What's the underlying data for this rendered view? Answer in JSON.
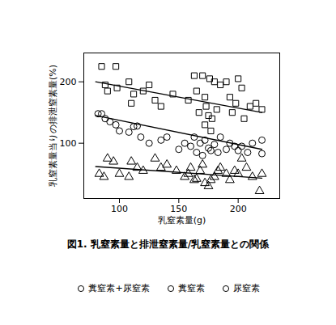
{
  "chart_data": {
    "type": "scatter",
    "title": "図1. 乳窒素量と排泄窒素量/乳窒素量との関係",
    "x_label": "乳窒素量(g)",
    "y_label": "乳窒素量当りの排泄窒素量(%)",
    "xlim": [
      70,
      235
    ],
    "xticks": [
      100,
      150,
      200
    ],
    "ylim": [
      10,
      247
    ],
    "yticks": [
      100,
      200
    ],
    "grid": false,
    "legend": "bottom",
    "series": [
      {
        "name": "糞窒素+尿窒素",
        "marker": "square",
        "color": "#000000",
        "x": [
          85,
          88,
          90,
          97,
          98,
          108,
          110,
          112,
          120,
          125,
          130,
          135,
          145,
          158,
          163,
          165,
          167,
          170,
          172,
          173,
          175,
          176,
          178,
          180,
          182,
          185,
          190,
          193,
          195,
          198,
          200,
          203,
          205,
          210,
          215,
          220,
          172,
          177
        ],
        "values": [
          225,
          195,
          185,
          225,
          190,
          200,
          165,
          180,
          185,
          195,
          170,
          160,
          180,
          170,
          210,
          185,
          150,
          210,
          175,
          160,
          145,
          205,
          140,
          200,
          155,
          195,
          200,
          175,
          150,
          165,
          205,
          190,
          140,
          160,
          165,
          155,
          130,
          120
        ],
        "fit": {
          "x": [
            80,
            220
          ],
          "values": [
            200,
            150
          ]
        }
      },
      {
        "name": "糞窒素",
        "marker": "circle",
        "color": "#000000",
        "x": [
          82,
          85,
          88,
          92,
          97,
          100,
          108,
          112,
          115,
          118,
          125,
          135,
          140,
          150,
          155,
          160,
          163,
          165,
          168,
          170,
          172,
          175,
          177,
          180,
          183,
          185,
          190,
          193,
          197,
          200,
          203,
          208,
          212,
          220,
          220
        ],
        "values": [
          148,
          148,
          140,
          135,
          130,
          120,
          118,
          127,
          128,
          110,
          100,
          105,
          110,
          90,
          100,
          95,
          110,
          85,
          100,
          80,
          105,
          92,
          88,
          98,
          85,
          110,
          90,
          100,
          95,
          88,
          95,
          85,
          100,
          83,
          105
        ],
        "fit": {
          "x": [
            80,
            220
          ],
          "values": [
            145,
            90
          ]
        }
      },
      {
        "name": "尿窒素",
        "marker": "triangle",
        "color": "#000000",
        "x": [
          83,
          87,
          90,
          95,
          100,
          108,
          110,
          115,
          120,
          130,
          135,
          140,
          148,
          155,
          158,
          160,
          163,
          165,
          168,
          170,
          172,
          175,
          177,
          180,
          183,
          185,
          190,
          193,
          197,
          200,
          203,
          207,
          212,
          218,
          220
        ],
        "values": [
          50,
          45,
          75,
          70,
          50,
          45,
          70,
          60,
          55,
          75,
          60,
          65,
          55,
          45,
          50,
          60,
          40,
          42,
          55,
          65,
          35,
          30,
          40,
          45,
          55,
          60,
          50,
          40,
          55,
          50,
          75,
          60,
          45,
          22,
          50
        ],
        "fit": {
          "x": [
            80,
            220
          ],
          "values": [
            62,
            43
          ]
        }
      }
    ]
  }
}
